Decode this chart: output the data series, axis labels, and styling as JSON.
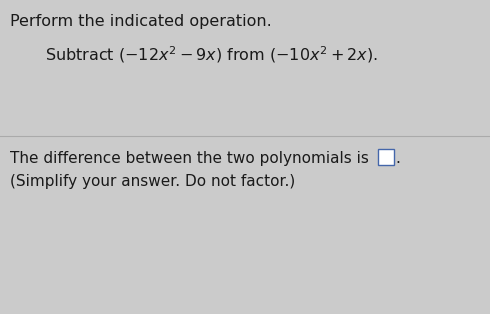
{
  "background_color": "#cbcbcb",
  "title_text": "Perform the indicated operation.",
  "subtitle_math": "Subtract $(-12x^2-9x)$ from $(-10x^2+2x).$",
  "bottom_line1": "The difference between the two polynomials is",
  "bottom_line2": "(Simplify your answer. Do not factor.)",
  "font_color": "#1a1a1a",
  "font_size_title": 11.5,
  "font_size_subtitle": 11.5,
  "font_size_bottom": 11.0,
  "divider_color": "#aaaaaa",
  "box_edge_color": "#4466aa",
  "box_face_color": "#ffffff"
}
